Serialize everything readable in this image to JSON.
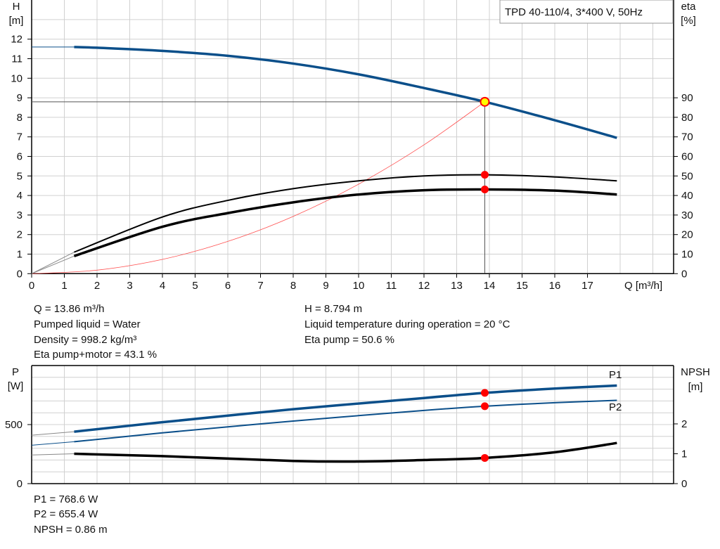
{
  "title": "TPD 40-110/4, 3*400 V, 50Hz",
  "colors": {
    "head": "#0b4f8a",
    "eta": "#000000",
    "system": "#ff5050",
    "point": "#ff0000",
    "duty": "#ffff00",
    "grid": "#d0d0d0"
  },
  "chart_data": [
    {
      "type": "line",
      "xlabel": "Q [m³/h]",
      "ylabel": "H\n[m]",
      "y2label": "eta\n[%]",
      "xlim": [
        0,
        19.6
      ],
      "ylim": [
        0,
        14
      ],
      "y2lim": [
        0,
        140
      ],
      "grid": true,
      "xticks": [
        0,
        1,
        2,
        3,
        4,
        5,
        6,
        7,
        8,
        9,
        10,
        11,
        12,
        13,
        14,
        15,
        16,
        17
      ],
      "yticks": [
        0,
        1,
        2,
        3,
        4,
        5,
        6,
        7,
        8,
        9,
        10,
        11,
        12
      ],
      "y2ticks": [
        0,
        10,
        20,
        30,
        40,
        50,
        60,
        70,
        80,
        90
      ],
      "series": [
        {
          "id": "H",
          "axis": "left",
          "x": [
            0,
            1.3,
            2,
            4,
            6,
            8,
            10,
            12,
            13.86,
            16,
            17.9
          ],
          "y": [
            11.6,
            11.6,
            11.56,
            11.4,
            11.15,
            10.75,
            10.2,
            9.5,
            8.794,
            7.85,
            6.95
          ]
        },
        {
          "id": "eta_pump",
          "axis": "right",
          "x": [
            0,
            1.3,
            4,
            6,
            8,
            10,
            12,
            13.86,
            16,
            17.9
          ],
          "y": [
            0,
            11,
            29,
            37.5,
            43.5,
            47.5,
            50,
            50.6,
            49.5,
            47.5
          ]
        },
        {
          "id": "eta_pump_motor",
          "axis": "right",
          "x": [
            0,
            1.3,
            4,
            6,
            8,
            10,
            12,
            13.86,
            16,
            17.9
          ],
          "y": [
            0,
            9,
            24,
            31,
            36.5,
            40.5,
            42.7,
            43.1,
            42.5,
            40.5
          ]
        },
        {
          "id": "system",
          "axis": "left",
          "x": [
            0,
            2,
            4,
            6,
            8,
            10,
            12,
            13.86
          ],
          "y": [
            0,
            0.18,
            0.73,
            1.65,
            2.93,
            4.58,
            6.59,
            8.794
          ]
        }
      ],
      "duty_point": {
        "Q": 13.86,
        "H": 8.794,
        "eta_pump": 50.6,
        "eta_pump_motor": 43.1
      }
    },
    {
      "type": "line",
      "ylabel": "P\n[W]",
      "y2label": "NPSH\n[m]",
      "xlim": [
        0,
        19.6
      ],
      "ylim": [
        0,
        1000
      ],
      "y2lim": [
        0,
        4
      ],
      "grid": true,
      "yticks": [
        0,
        500
      ],
      "y2ticks": [
        0,
        1,
        2
      ],
      "series": [
        {
          "name": "P1",
          "axis": "left",
          "x": [
            0,
            1.3,
            4,
            8,
            12,
            13.86,
            16,
            17.9
          ],
          "y": [
            410,
            440,
            520,
            630,
            725,
            768.6,
            805,
            830
          ]
        },
        {
          "name": "P2",
          "axis": "left",
          "x": [
            0,
            1.3,
            4,
            8,
            12,
            13.86,
            16,
            17.9
          ],
          "y": [
            325,
            355,
            430,
            530,
            620,
            655.4,
            685,
            705
          ]
        },
        {
          "id": "NPSH",
          "axis": "right",
          "x": [
            0,
            1.3,
            4,
            8,
            10,
            12,
            13.86,
            16,
            17.9
          ],
          "y": [
            0.96,
            1.0,
            0.92,
            0.76,
            0.74,
            0.79,
            0.86,
            1.05,
            1.36
          ]
        }
      ],
      "duty_point": {
        "P1": 768.6,
        "P2": 655.4,
        "NPSH": 0.86
      }
    }
  ],
  "info_top": {
    "left": [
      "Q = 13.86 m³/h",
      "Pumped liquid = Water",
      "Density = 998.2 kg/m³",
      "Eta pump+motor = 43.1 %"
    ],
    "right": [
      "H = 8.794 m",
      "Liquid temperature during operation = 20 °C",
      "Eta pump = 50.6 %"
    ]
  },
  "info_bottom": [
    "P1 = 768.6 W",
    "P2 = 655.4 W",
    "NPSH = 0.86 m"
  ]
}
